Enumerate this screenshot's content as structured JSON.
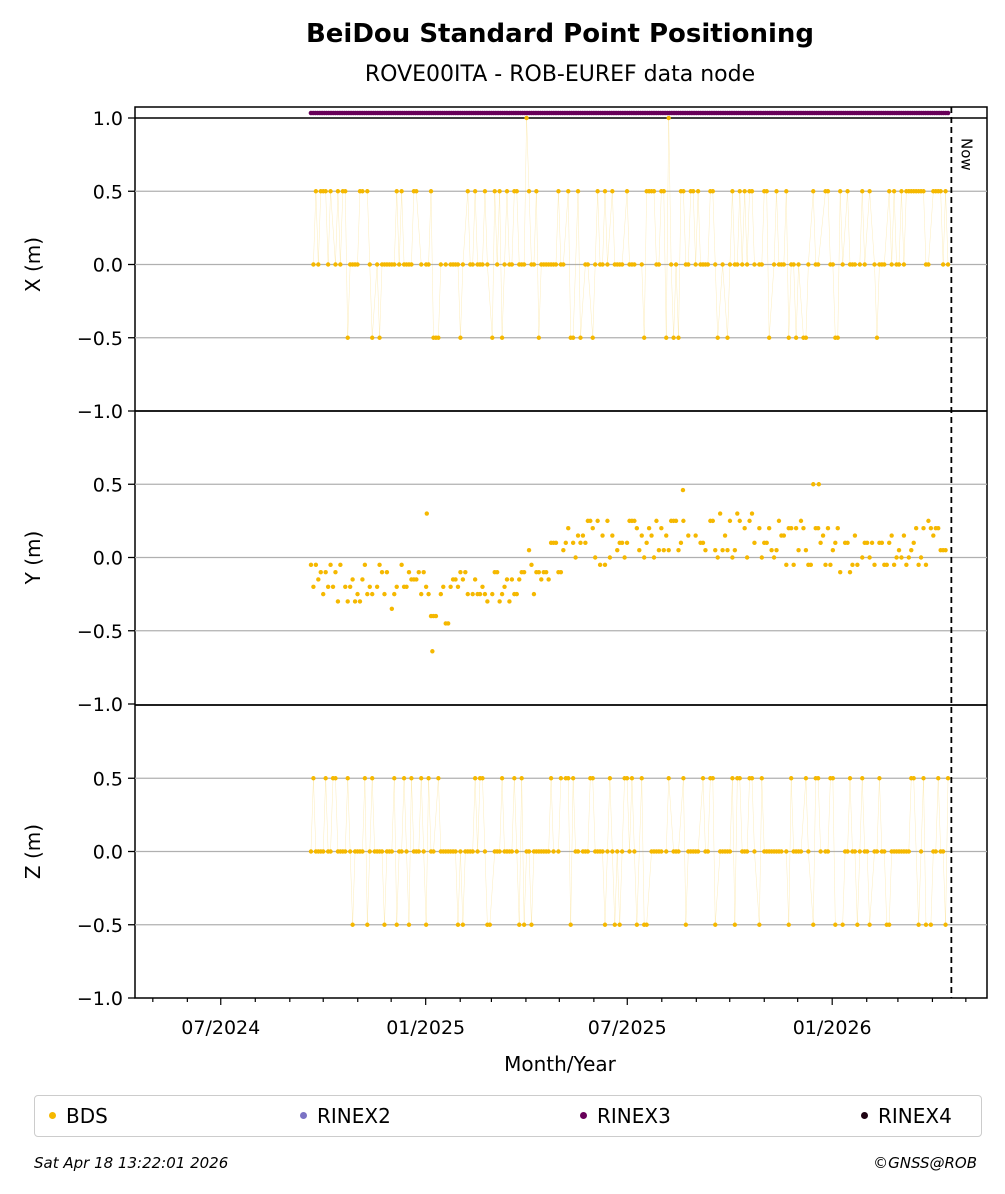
{
  "title": "BeiDou Standard Point Positioning",
  "subtitle": "ROVE00ITA - ROB-EUREF data node",
  "footer": {
    "timestamp": "Sat Apr 18 13:22:01 2026",
    "copyright": "©GNSS@ROB"
  },
  "legend": [
    {
      "label": "BDS",
      "color": "#f5b800"
    },
    {
      "label": "RINEX2",
      "color": "#7b72c4"
    },
    {
      "label": "RINEX3",
      "color": "#680059"
    },
    {
      "label": "RINEX4",
      "color": "#1e0312"
    }
  ],
  "chart_data": {
    "type": "scatter",
    "xlabel": "Month/Year",
    "x_ticks": [
      "07/2024",
      "01/2025",
      "07/2025",
      "01/2026"
    ],
    "x_range": [
      "2024-04-15",
      "2026-05-20"
    ],
    "now_marker": {
      "label": "Now",
      "date": "2026-04-18"
    },
    "rinex3_availability": {
      "start": "2024-09-20",
      "end": "2026-04-16",
      "y": 1.03
    },
    "panels": [
      {
        "ylabel": "X (m)",
        "ylim": [
          -1.0,
          1.0
        ],
        "y_ticks": [
          "1.0",
          "0.5",
          "0.0",
          "−0.5",
          "−1.0"
        ],
        "grid": true,
        "series": "BDS",
        "y_values": [
          0.0,
          0.5,
          -0.5,
          1.0
        ],
        "start": "2024-09-20",
        "end": "2026-04-16"
      },
      {
        "ylabel": "Y (m)",
        "ylim": [
          -1.0,
          1.0
        ],
        "y_ticks": [
          "0.5",
          "0.0",
          "−0.5",
          "−1.0"
        ],
        "grid": true,
        "series": "BDS",
        "trend": [
          {
            "date": "2024-09-20",
            "y": -0.15
          },
          {
            "date": "2024-12-10",
            "y": -0.2
          },
          {
            "date": "2025-01-20",
            "y": -0.3
          },
          {
            "date": "2025-03-01",
            "y": -0.22
          },
          {
            "date": "2025-04-20",
            "y": -0.05
          },
          {
            "date": "2025-06-01",
            "y": 0.12
          },
          {
            "date": "2025-08-01",
            "y": 0.12
          },
          {
            "date": "2025-10-20",
            "y": 0.15
          },
          {
            "date": "2026-01-01",
            "y": 0.05
          },
          {
            "date": "2026-04-16",
            "y": 0.1
          }
        ],
        "outliers": [
          {
            "date": "2025-01-07",
            "y": -0.64
          },
          {
            "date": "2025-01-02",
            "y": 0.3
          },
          {
            "date": "2025-08-20",
            "y": 0.46
          },
          {
            "date": "2025-12-15",
            "y": 0.5
          },
          {
            "date": "2025-12-20",
            "y": 0.5
          }
        ],
        "start": "2024-09-20",
        "end": "2026-04-16"
      },
      {
        "ylabel": "Z (m)",
        "ylim": [
          -1.0,
          1.0
        ],
        "y_ticks": [
          "0.5",
          "0.0",
          "−0.5",
          "−1.0"
        ],
        "grid": true,
        "series": "BDS",
        "y_values": [
          0.0,
          0.5,
          -0.5
        ],
        "start": "2024-09-20",
        "end": "2026-04-16"
      }
    ]
  }
}
